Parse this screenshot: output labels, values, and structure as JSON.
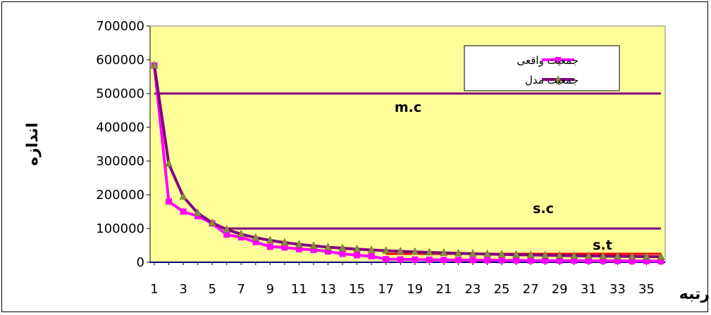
{
  "chart_data": {
    "type": "line",
    "xlabel": "رتبه",
    "ylabel": "اندازه",
    "ylim": [
      0,
      700000
    ],
    "yticks": [
      0,
      100000,
      200000,
      300000,
      400000,
      500000,
      600000,
      700000
    ],
    "xlim": [
      1,
      36
    ],
    "x_tick_labels": [
      "1",
      "3",
      "5",
      "7",
      "9",
      "11",
      "13",
      "15",
      "17",
      "19",
      "21",
      "23",
      "25",
      "27",
      "29",
      "31",
      "33",
      "35"
    ],
    "background": "#FFFF99",
    "grid": false,
    "legend_position": "top-right",
    "series": [
      {
        "name": "جمعیت واقعی",
        "color": "#FF00FF",
        "marker": "square",
        "x": [
          1,
          2,
          3,
          4,
          5,
          6,
          7,
          8,
          9,
          10,
          11,
          12,
          13,
          14,
          15,
          16,
          17,
          18,
          19,
          20,
          21,
          22,
          23,
          24,
          25,
          26,
          27,
          28,
          29,
          30,
          31,
          32,
          33,
          34,
          35,
          36
        ],
        "values": [
          583000,
          180000,
          150000,
          137000,
          115000,
          82000,
          74000,
          60000,
          46000,
          44000,
          39000,
          37000,
          32000,
          25000,
          21000,
          18000,
          9000,
          8500,
          8000,
          7500,
          7000,
          6800,
          6500,
          6000,
          5800,
          5500,
          5200,
          5000,
          4800,
          4600,
          4400,
          4200,
          4000,
          3800,
          3600,
          3400
        ]
      },
      {
        "name": "جمعیت مدل",
        "color": "#800080",
        "marker": "triangle",
        "marker_color": "#8B8B3C",
        "x": [
          1,
          2,
          3,
          4,
          5,
          6,
          7,
          8,
          9,
          10,
          11,
          12,
          13,
          14,
          15,
          16,
          17,
          18,
          19,
          20,
          21,
          22,
          23,
          24,
          25,
          26,
          27,
          28,
          29,
          30,
          31,
          32,
          33,
          34,
          35,
          36
        ],
        "values": [
          583000,
          291500,
          194300,
          145800,
          116600,
          97200,
          83300,
          72900,
          64800,
          58300,
          53000,
          48600,
          44800,
          41600,
          38900,
          36400,
          34300,
          32400,
          30700,
          29200,
          27800,
          26500,
          25300,
          24300,
          23300,
          22400,
          21600,
          20800,
          20100,
          19400,
          18800,
          18200,
          17700,
          17100,
          16700,
          16200
        ]
      }
    ],
    "reference_lines": [
      {
        "label": "m.c",
        "y": 500000,
        "x_from": 1,
        "x_to": 36,
        "color": "#800080"
      },
      {
        "label": "s.c",
        "y": 100000,
        "x_from": 6,
        "x_to": 36,
        "color": "#800080"
      },
      {
        "label": "s.t",
        "y": 25000,
        "x_from": 17,
        "x_to": 36,
        "color": "#FF0000"
      }
    ]
  }
}
